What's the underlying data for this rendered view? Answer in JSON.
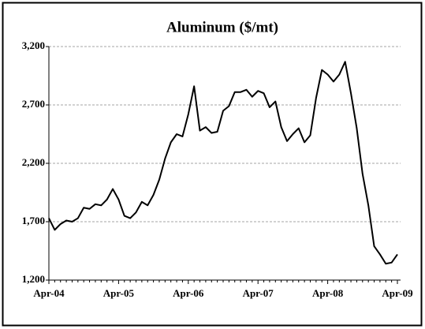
{
  "chart_data": {
    "type": "line",
    "title": "Aluminum ($/mt)",
    "categories": [
      "Apr-04",
      null,
      null,
      null,
      null,
      null,
      null,
      null,
      null,
      null,
      null,
      null,
      "Apr-05",
      null,
      null,
      null,
      null,
      null,
      null,
      null,
      null,
      null,
      null,
      null,
      "Apr-06",
      null,
      null,
      null,
      null,
      null,
      null,
      null,
      null,
      null,
      null,
      null,
      "Apr-07",
      null,
      null,
      null,
      null,
      null,
      null,
      null,
      null,
      null,
      null,
      null,
      "Apr-08",
      null,
      null,
      null,
      null,
      null,
      null,
      null,
      null,
      null,
      null,
      null,
      "Apr-09"
    ],
    "series": [
      {
        "name": "Aluminum",
        "color": "#000000",
        "values": [
          1730,
          1630,
          1680,
          1710,
          1700,
          1730,
          1820,
          1810,
          1850,
          1840,
          1890,
          1980,
          1890,
          1750,
          1730,
          1780,
          1870,
          1840,
          1930,
          2060,
          2240,
          2380,
          2450,
          2430,
          2620,
          2860,
          2480,
          2510,
          2460,
          2470,
          2650,
          2690,
          2810,
          2810,
          2830,
          2770,
          2820,
          2800,
          2680,
          2730,
          2510,
          2390,
          2450,
          2500,
          2380,
          2440,
          2760,
          3000,
          2960,
          2900,
          2960,
          3070,
          2800,
          2500,
          2110,
          1840,
          1490,
          1420,
          1340,
          1350,
          1420
        ]
      }
    ],
    "ylim": [
      1200,
      3200
    ],
    "yticks": [
      {
        "value": 1200,
        "label": "1,200"
      },
      {
        "value": 1700,
        "label": "1,700"
      },
      {
        "value": 2200,
        "label": "2,200"
      },
      {
        "value": 2700,
        "label": "2,700"
      },
      {
        "value": 3200,
        "label": "3,200"
      }
    ],
    "grid": true
  }
}
